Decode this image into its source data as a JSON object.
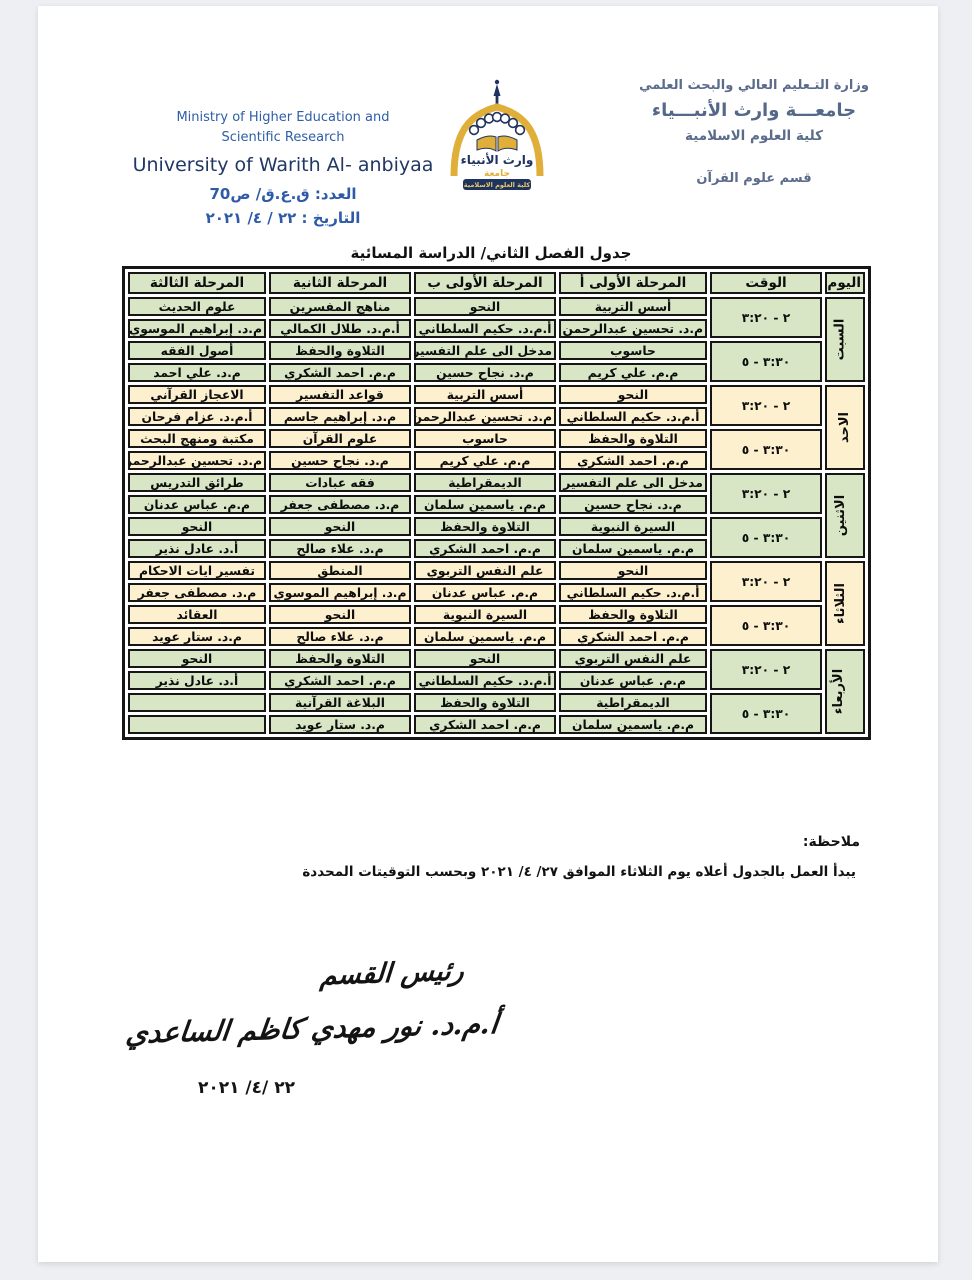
{
  "header": {
    "right": {
      "ministry": "وزارة التـعليم العالي والبحث العلمي",
      "university": "جامعـــة وارث الأنبـــياء",
      "college": "كلية العلوم الاسلامية",
      "department": "قسم علوم القرآن"
    },
    "left": {
      "ministry_line1": "Ministry of Higher Education and",
      "ministry_line2": "Scientific Research",
      "university": "University of Warith Al- anbiyaa",
      "number": "العدد: ق.ع.ق/ ص70",
      "date": "التاريخ : ٢٢ / ٤/ ٢٠٢١"
    },
    "logo": {
      "calligraphy": "وارث الأنبياء",
      "word": "جامعة",
      "banner": "كلية العلوم الاسلامية"
    }
  },
  "table": {
    "title": "جدول الفصل الثاني/ الدراسة المسائية",
    "columns": [
      "اليوم",
      "الوقت",
      "المرحلة الأولى أ",
      "المرحلة الأولى ب",
      "المرحلة الثانية",
      "المرحلة الثالثة"
    ],
    "days": [
      {
        "name": "السبت",
        "color": "green",
        "slots": [
          {
            "time": "٢ - ٣:٢٠",
            "cells": [
              {
                "subject": "أسس التربية",
                "teacher": "م.د. تحسين عبدالرحمن"
              },
              {
                "subject": "النحو",
                "teacher": "أ.م.د. حكيم السلطاني"
              },
              {
                "subject": "مناهج المفسرين",
                "teacher": "أ.م.د. طلال الكمالي"
              },
              {
                "subject": "علوم الحديث",
                "teacher": "م.د. إبراهيم الموسوي"
              }
            ]
          },
          {
            "time": "٣:٣٠ - ٥",
            "cells": [
              {
                "subject": "حاسوب",
                "teacher": "م.م. علي كريم"
              },
              {
                "subject": "مدخل الى علم التفسير",
                "teacher": "م.د. نجاح حسين"
              },
              {
                "subject": "التلاوة والحفظ",
                "teacher": "م.م. احمد الشكري"
              },
              {
                "subject": "أصول الفقه",
                "teacher": "م.د. علي احمد"
              }
            ]
          }
        ]
      },
      {
        "name": "الاحد",
        "color": "cream",
        "slots": [
          {
            "time": "٢ - ٣:٢٠",
            "cells": [
              {
                "subject": "النحو",
                "teacher": "أ.م.د. حكيم السلطاني"
              },
              {
                "subject": "أسس التربية",
                "teacher": "م.د. تحسين عبدالرحمن"
              },
              {
                "subject": "قواعد التفسير",
                "teacher": "م.د. إبراهيم جاسم"
              },
              {
                "subject": "الاعجاز القرآني",
                "teacher": "أ.م.د. عزام فرحان"
              }
            ]
          },
          {
            "time": "٣:٣٠ - ٥",
            "cells": [
              {
                "subject": "التلاوة والحفظ",
                "teacher": "م.م. احمد الشكري"
              },
              {
                "subject": "حاسوب",
                "teacher": "م.م. علي كريم"
              },
              {
                "subject": "علوم القرآن",
                "teacher": "م.د. نجاح حسين"
              },
              {
                "subject": "مكتبة ومنهج البحث",
                "teacher": "م.د. تحسين عبدالرحمن"
              }
            ]
          }
        ]
      },
      {
        "name": "الاثنين",
        "color": "green",
        "slots": [
          {
            "time": "٢ - ٣:٢٠",
            "cells": [
              {
                "subject": "مدخل الى علم التفسير",
                "teacher": "م.د. نجاح حسين"
              },
              {
                "subject": "الديمقراطية",
                "teacher": "م.م. ياسمين سلمان"
              },
              {
                "subject": "فقه عبادات",
                "teacher": "م.د. مصطفى جعفر"
              },
              {
                "subject": "طرائق التدريس",
                "teacher": "م.م. عباس عدنان"
              }
            ]
          },
          {
            "time": "٣:٣٠ - ٥",
            "cells": [
              {
                "subject": "السيرة النبوية",
                "teacher": "م.م. ياسمين سلمان"
              },
              {
                "subject": "التلاوة والحفظ",
                "teacher": "م.م. احمد الشكري"
              },
              {
                "subject": "النحو",
                "teacher": "م.د. علاء صالح"
              },
              {
                "subject": "النحو",
                "teacher": "أ.د. عادل نذير"
              }
            ]
          }
        ]
      },
      {
        "name": "الثلاثاء",
        "color": "cream",
        "slots": [
          {
            "time": "٢ - ٣:٢٠",
            "cells": [
              {
                "subject": "النحو",
                "teacher": "أ.م.د. حكيم السلطاني"
              },
              {
                "subject": "علم النفس التربوي",
                "teacher": "م.م. عباس عدنان"
              },
              {
                "subject": "المنطق",
                "teacher": "م.د. إبراهيم الموسوي"
              },
              {
                "subject": "تفسير ايات الاحكام",
                "teacher": "م.د. مصطفى جعفر"
              }
            ]
          },
          {
            "time": "٣:٣٠ - ٥",
            "cells": [
              {
                "subject": "التلاوة والحفظ",
                "teacher": "م.م. احمد الشكري"
              },
              {
                "subject": "السيرة النبوية",
                "teacher": "م.م. ياسمين سلمان"
              },
              {
                "subject": "النحو",
                "teacher": "م.د. علاء صالح"
              },
              {
                "subject": "العقائد",
                "teacher": "م.د. ستار عويد"
              }
            ]
          }
        ]
      },
      {
        "name": "الأربعاء",
        "color": "green",
        "slots": [
          {
            "time": "٢ - ٣:٢٠",
            "cells": [
              {
                "subject": "علم النفس التربوي",
                "teacher": "م.م. عباس عدنان"
              },
              {
                "subject": "النحو",
                "teacher": "أ.م.د. حكيم السلطاني"
              },
              {
                "subject": "التلاوة والحفظ",
                "teacher": "م.م. احمد الشكري"
              },
              {
                "subject": "النحو",
                "teacher": "أ.د. عادل نذير"
              }
            ]
          },
          {
            "time": "٣:٣٠ - ٥",
            "cells": [
              {
                "subject": "الديمقراطية",
                "teacher": "م.م. ياسمين سلمان"
              },
              {
                "subject": "التلاوة والحفظ",
                "teacher": "م.م. احمد الشكري"
              },
              {
                "subject": "البلاغة القرآنية",
                "teacher": "م.د. ستار عويد"
              },
              {
                "subject": "",
                "teacher": ""
              }
            ]
          }
        ]
      }
    ]
  },
  "note": {
    "label": "ملاحظة:",
    "text": "يبدأ العمل بالجدول أعلاه يوم الثلاثاء الموافق ٢٧/ ٤/ ٢٠٢١ وبحسب التوقيتات المحددة"
  },
  "signature": {
    "title": "رئيس القسم",
    "name": "أ.م.د. نور مهدي كاظم الساعدي",
    "date": "٢٢ /٤/ ٢٠٢١"
  },
  "colors": {
    "green": "#d9e6c6",
    "cream": "#fdf0cf",
    "border": "#161616",
    "blue": "#2e5ba8",
    "navy": "#203864",
    "grayblue": "#5a6b8c"
  }
}
